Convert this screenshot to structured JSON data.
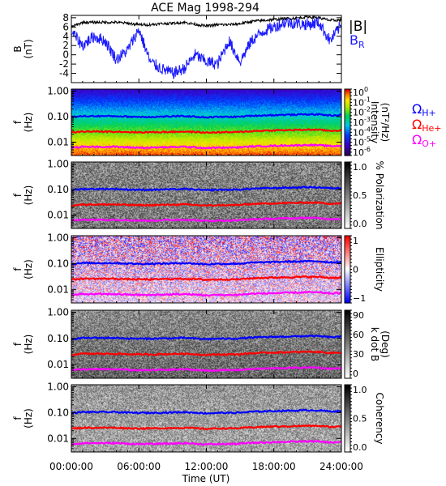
{
  "title": "ACE Mag 1998-294",
  "x_axis": {
    "label": "Time (UT)",
    "ticks": [
      "00:00:00",
      "06:00:00",
      "12:00:00",
      "18:00:00",
      "24:00:00"
    ],
    "range_hours": [
      0,
      24
    ]
  },
  "legend": {
    "B": "|B|",
    "BR": "B",
    "BR_sub": "R",
    "H": "Ω",
    "H_sub": "H+",
    "He": "Ω",
    "He_sub": "He+",
    "O": "Ω",
    "O_sub": "O+"
  },
  "colors": {
    "B": "#000000",
    "BR": "#1a1aff",
    "H": "#0000ff",
    "He": "#ff0000",
    "O": "#ff00ff"
  },
  "chart_data": [
    {
      "type": "line",
      "panel": "magnetic-field",
      "ylabel": "B",
      "yunit": "(nT)",
      "ylim": [
        -6,
        8.5
      ],
      "yticks": [
        "8",
        "6",
        "4",
        "2",
        "0",
        "-2",
        "-4"
      ],
      "yticks_values": [
        8,
        6,
        4,
        2,
        0,
        -2,
        -4
      ],
      "x": [
        0,
        1,
        2,
        3,
        4,
        5,
        6,
        7,
        8,
        9,
        10,
        11,
        12,
        13,
        14,
        15,
        16,
        17,
        18,
        19,
        20,
        21,
        22,
        23,
        24
      ],
      "series": [
        {
          "name": "|B|",
          "values": [
            6.0,
            7.0,
            7.0,
            7.0,
            7.0,
            6.8,
            6.5,
            6.5,
            6.7,
            6.8,
            7.0,
            6.6,
            6.2,
            6.5,
            6.5,
            6.7,
            7.2,
            7.4,
            7.6,
            7.8,
            7.9,
            8.2,
            8.0,
            7.4,
            7.5
          ]
        },
        {
          "name": "B_R",
          "values": [
            5.0,
            2.0,
            4.0,
            3.0,
            -1.0,
            1.0,
            5.5,
            -1.5,
            -3.0,
            -4.0,
            -3.0,
            0.0,
            -1.5,
            -2.0,
            3.0,
            -1.5,
            3.0,
            5.0,
            6.0,
            7.0,
            6.8,
            6.5,
            7.0,
            3.0,
            6.5
          ]
        }
      ]
    },
    {
      "type": "heatmap",
      "panel": "power-spectrum",
      "ylabel": "f",
      "yunit": "(Hz)",
      "yscale": "log",
      "ylim": [
        0.003,
        1.2
      ],
      "yticks": [
        "1.00",
        "0.10",
        "0.01"
      ],
      "yticks_values": [
        1.0,
        0.1,
        0.01
      ],
      "colorbar": {
        "label": "Intensity",
        "unit": "(nT²/Hz)",
        "ticks": [
          {
            "base": "10",
            "exp": "0"
          },
          {
            "base": "10",
            "exp": "-1"
          },
          {
            "base": "10",
            "exp": "-2"
          },
          {
            "base": "10",
            "exp": "-3"
          },
          {
            "base": "10",
            "exp": "-4"
          },
          {
            "base": "10",
            "exp": "-5"
          },
          {
            "base": "10",
            "exp": "-6"
          }
        ],
        "colormap": "rainbow"
      }
    },
    {
      "type": "heatmap",
      "panel": "polarization",
      "ylabel": "f",
      "yunit": "(Hz)",
      "yscale": "log",
      "ylim": [
        0.003,
        1.2
      ],
      "yticks": [
        "1.00",
        "0.10",
        "0.01"
      ],
      "yticks_values": [
        1.0,
        0.1,
        0.01
      ],
      "colorbar": {
        "label": "% Polarization",
        "ticks": [
          "1.0",
          "0.5",
          "0.0"
        ],
        "colormap": "gray"
      }
    },
    {
      "type": "heatmap",
      "panel": "ellipticity",
      "ylabel": "f",
      "yunit": "(Hz)",
      "yscale": "log",
      "ylim": [
        0.003,
        1.2
      ],
      "yticks": [
        "1.00",
        "0.10",
        "0.01"
      ],
      "yticks_values": [
        1.0,
        0.1,
        0.01
      ],
      "colorbar": {
        "label": "Ellipticity",
        "ticks": [
          "1",
          "0",
          "−1"
        ],
        "colormap": "blue-white-red"
      }
    },
    {
      "type": "heatmap",
      "panel": "k-dot-b",
      "ylabel": "f",
      "yunit": "(Hz)",
      "yscale": "log",
      "ylim": [
        0.003,
        1.2
      ],
      "yticks": [
        "1.00",
        "0.10",
        "0.01"
      ],
      "yticks_values": [
        1.0,
        0.1,
        0.01
      ],
      "colorbar": {
        "label": "k dot B",
        "unit": "(Deg)",
        "ticks": [
          "90",
          "60",
          "30",
          "0"
        ],
        "colormap": "gray"
      }
    },
    {
      "type": "heatmap",
      "panel": "coherency",
      "ylabel": "f",
      "yunit": "(Hz)",
      "yscale": "log",
      "ylim": [
        0.003,
        1.2
      ],
      "yticks": [
        "1.00",
        "0.10",
        "0.01"
      ],
      "yticks_values": [
        1.0,
        0.1,
        0.01
      ],
      "colorbar": {
        "label": "Coherency",
        "ticks": [
          "1.0",
          "0.5",
          "0.0"
        ],
        "colormap": "gray"
      }
    }
  ],
  "gyrofrequency_lines": {
    "x": [
      0,
      1,
      2,
      3,
      4,
      5,
      6,
      7,
      8,
      9,
      10,
      11,
      12,
      13,
      14,
      15,
      16,
      17,
      18,
      19,
      20,
      21,
      22,
      23,
      24
    ],
    "H": [
      0.095,
      0.105,
      0.105,
      0.105,
      0.105,
      0.1,
      0.098,
      0.098,
      0.1,
      0.102,
      0.105,
      0.1,
      0.094,
      0.098,
      0.098,
      0.1,
      0.108,
      0.112,
      0.115,
      0.118,
      0.12,
      0.124,
      0.122,
      0.112,
      0.115
    ],
    "He": [
      0.024,
      0.026,
      0.026,
      0.026,
      0.026,
      0.025,
      0.0245,
      0.0245,
      0.025,
      0.0255,
      0.026,
      0.025,
      0.0235,
      0.0245,
      0.0245,
      0.025,
      0.027,
      0.028,
      0.029,
      0.0295,
      0.03,
      0.031,
      0.0305,
      0.028,
      0.029
    ],
    "O": [
      0.006,
      0.0066,
      0.0066,
      0.0066,
      0.0066,
      0.0063,
      0.0061,
      0.0061,
      0.0063,
      0.0064,
      0.0066,
      0.0063,
      0.0059,
      0.0061,
      0.0061,
      0.0063,
      0.0068,
      0.007,
      0.0072,
      0.0074,
      0.0075,
      0.0078,
      0.0076,
      0.007,
      0.0072
    ]
  }
}
